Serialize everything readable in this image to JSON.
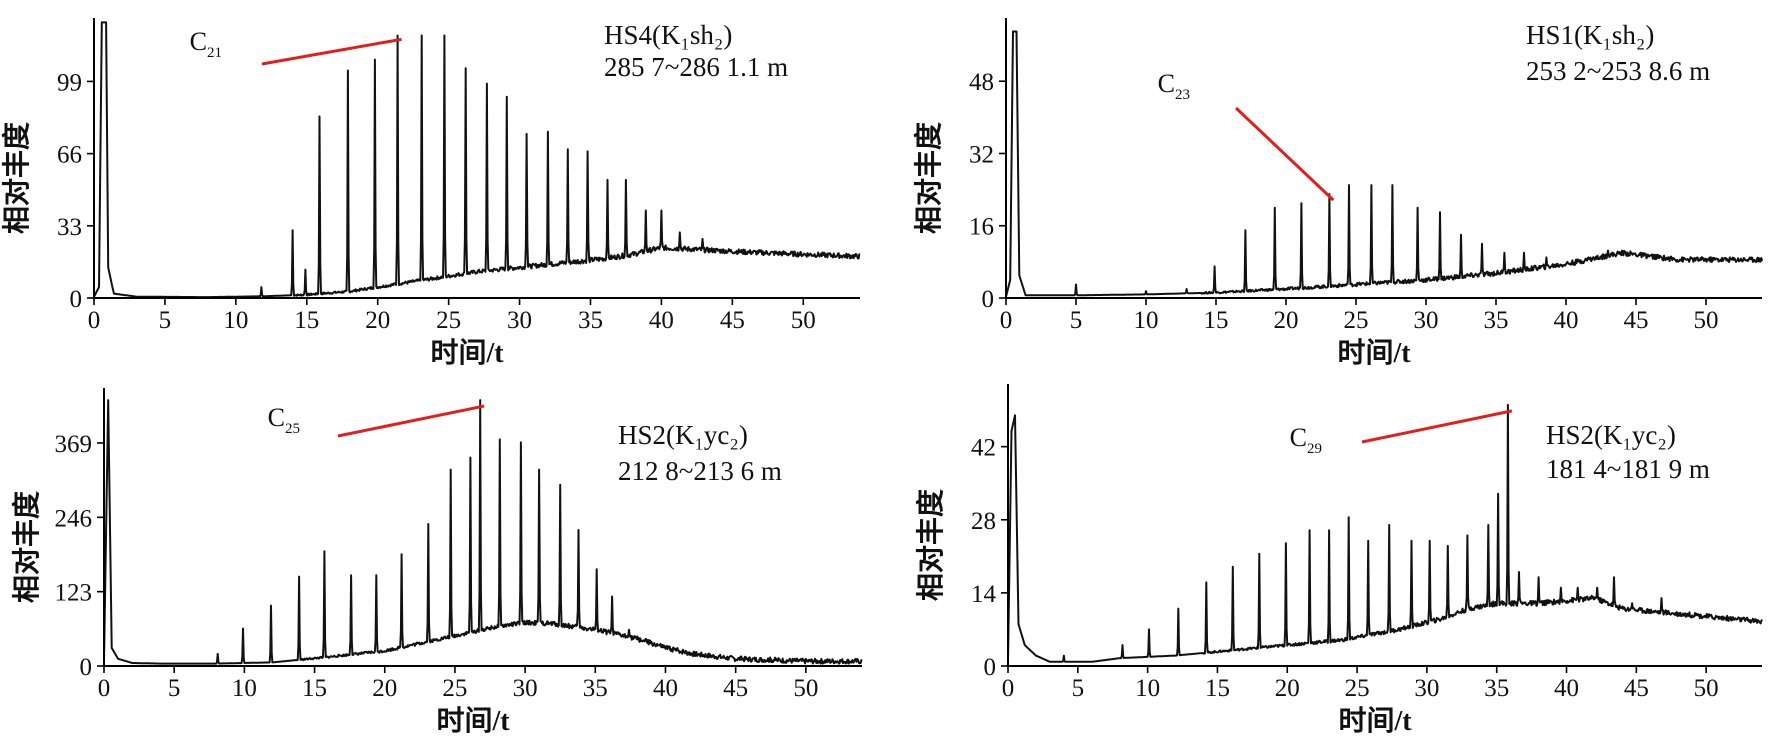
{
  "chart_data": [
    {
      "type": "line",
      "title": "",
      "xlabel": "时间/t",
      "ylabel": "相对丰度",
      "xlim": [
        0,
        54
      ],
      "ylim": [
        0,
        128
      ],
      "x_ticks": [
        0,
        5,
        10,
        15,
        20,
        25,
        30,
        35,
        40,
        45,
        50
      ],
      "y_ticks": [
        0,
        33,
        66,
        99
      ],
      "sample_lines": [
        "HS4(K₁sh₂)",
        "285 7~286 1.1 m"
      ],
      "peak_label": {
        "base": "C",
        "sub": "21",
        "x": 21.4,
        "y": 121
      },
      "baseline": [
        [
          0,
          0.5
        ],
        [
          0.35,
          5
        ],
        [
          0.55,
          126
        ],
        [
          0.85,
          126
        ],
        [
          1.0,
          14
        ],
        [
          1.4,
          2
        ],
        [
          3,
          0.6
        ],
        [
          8,
          0.4
        ],
        [
          12,
          0.8
        ],
        [
          15,
          1.5
        ],
        [
          18,
          3
        ],
        [
          21,
          6
        ],
        [
          24,
          9
        ],
        [
          27,
          12
        ],
        [
          30,
          14
        ],
        [
          33,
          16
        ],
        [
          36,
          18
        ],
        [
          38,
          20
        ],
        [
          40,
          23
        ],
        [
          43,
          22
        ],
        [
          46,
          21
        ],
        [
          50,
          20
        ],
        [
          54,
          19
        ]
      ],
      "peaks": [
        [
          11.8,
          5
        ],
        [
          14,
          31
        ],
        [
          14.9,
          13
        ],
        [
          15.9,
          83
        ],
        [
          17.9,
          104
        ],
        [
          19.8,
          109
        ],
        [
          21.4,
          120
        ],
        [
          23.1,
          120
        ],
        [
          24.7,
          120
        ],
        [
          26.2,
          105
        ],
        [
          27.7,
          98
        ],
        [
          29.1,
          92
        ],
        [
          30.5,
          75
        ],
        [
          32,
          76
        ],
        [
          33.4,
          68
        ],
        [
          34.8,
          67
        ],
        [
          36.2,
          54
        ],
        [
          37.5,
          54
        ],
        [
          38.9,
          40
        ],
        [
          40,
          40
        ],
        [
          41.3,
          30
        ],
        [
          42.9,
          27
        ]
      ],
      "series": [
        {
          "values": []
        }
      ]
    },
    {
      "type": "line",
      "title": "",
      "xlabel": "时间/t",
      "ylabel": "相对丰度",
      "xlim": [
        0,
        54
      ],
      "ylim": [
        0,
        62
      ],
      "x_ticks": [
        0,
        5,
        10,
        15,
        20,
        25,
        30,
        35,
        40,
        45,
        50
      ],
      "y_ticks": [
        0,
        16,
        32,
        48
      ],
      "sample_lines": [
        "HS1(K₁sh₂)",
        "253 2~253 8.6 m"
      ],
      "peak_label": {
        "base": "C",
        "sub": "23",
        "x": 23.1,
        "y": 23
      },
      "baseline": [
        [
          0,
          0.3
        ],
        [
          0.3,
          4
        ],
        [
          0.5,
          59
        ],
        [
          0.75,
          59
        ],
        [
          0.95,
          5
        ],
        [
          1.4,
          0.6
        ],
        [
          5,
          0.6
        ],
        [
          10,
          0.8
        ],
        [
          15,
          1.2
        ],
        [
          20,
          2
        ],
        [
          25,
          3
        ],
        [
          30,
          4
        ],
        [
          35,
          5.5
        ],
        [
          40,
          7.5
        ],
        [
          44,
          10
        ],
        [
          48,
          8.5
        ],
        [
          52,
          8.5
        ],
        [
          54,
          8.5
        ]
      ],
      "peaks": [
        [
          5,
          3
        ],
        [
          10,
          1.5
        ],
        [
          12.9,
          2
        ],
        [
          14.9,
          7
        ],
        [
          17.1,
          15
        ],
        [
          19.2,
          20
        ],
        [
          21.1,
          21
        ],
        [
          23.1,
          23
        ],
        [
          24.5,
          25
        ],
        [
          26.1,
          25
        ],
        [
          27.6,
          25
        ],
        [
          29.4,
          20
        ],
        [
          31,
          19
        ],
        [
          32.5,
          14
        ],
        [
          34,
          12
        ],
        [
          35.6,
          10
        ],
        [
          37,
          10
        ],
        [
          38.6,
          9
        ],
        [
          40.1,
          8
        ],
        [
          41.6,
          9
        ],
        [
          43,
          10.5
        ]
      ],
      "series": [
        {
          "values": []
        }
      ]
    },
    {
      "type": "line",
      "title": "",
      "xlabel": "时间/t",
      "ylabel": "相对丰度",
      "xlim": [
        0,
        54
      ],
      "ylim": [
        0,
        460
      ],
      "x_ticks": [
        0,
        5,
        10,
        15,
        20,
        25,
        30,
        35,
        40,
        45,
        50
      ],
      "y_ticks": [
        0,
        123,
        246,
        369
      ],
      "sample_lines": [
        "HS2(K₁yc₂)",
        "212 8~213 6 m"
      ],
      "peak_label": {
        "base": "C",
        "sub": "25",
        "x": 26.8,
        "y": 440
      },
      "baseline": [
        [
          0,
          8
        ],
        [
          0.3,
          440
        ],
        [
          0.55,
          30
        ],
        [
          1,
          12
        ],
        [
          2,
          5
        ],
        [
          4,
          4
        ],
        [
          8,
          4
        ],
        [
          12,
          6
        ],
        [
          16,
          15
        ],
        [
          20,
          25
        ],
        [
          24,
          45
        ],
        [
          28,
          65
        ],
        [
          30,
          72
        ],
        [
          32,
          70
        ],
        [
          35,
          60
        ],
        [
          38,
          45
        ],
        [
          40,
          30
        ],
        [
          42,
          20
        ],
        [
          45,
          12
        ],
        [
          50,
          8
        ],
        [
          54,
          8
        ]
      ],
      "peaks": [
        [
          8.1,
          20
        ],
        [
          9.9,
          62
        ],
        [
          11.9,
          100
        ],
        [
          13.9,
          148
        ],
        [
          15.7,
          190
        ],
        [
          17.6,
          150
        ],
        [
          19.4,
          150
        ],
        [
          21.2,
          185
        ],
        [
          23.1,
          235
        ],
        [
          24.7,
          325
        ],
        [
          26.1,
          345
        ],
        [
          26.8,
          440
        ],
        [
          28.2,
          375
        ],
        [
          29.7,
          370
        ],
        [
          31,
          325
        ],
        [
          32.5,
          300
        ],
        [
          33.8,
          225
        ],
        [
          35.1,
          160
        ],
        [
          36.2,
          115
        ],
        [
          37.4,
          60
        ],
        [
          38.6,
          45
        ]
      ],
      "series": [
        {
          "values": []
        }
      ]
    },
    {
      "type": "line",
      "title": "",
      "xlabel": "时间/t",
      "ylabel": "相对丰度",
      "xlim": [
        0,
        54
      ],
      "ylim": [
        0,
        54
      ],
      "x_ticks": [
        0,
        5,
        10,
        15,
        20,
        25,
        30,
        35,
        40,
        45,
        50
      ],
      "y_ticks": [
        0,
        14,
        28,
        42
      ],
      "sample_lines": [
        "HS2(K₁yc₂)",
        "181 4~181 9 m"
      ],
      "peak_label": {
        "base": "C",
        "sub": "29",
        "x": 35.8,
        "y": 50
      },
      "baseline": [
        [
          0,
          1
        ],
        [
          0.25,
          45
        ],
        [
          0.5,
          48
        ],
        [
          0.75,
          8
        ],
        [
          1.2,
          4
        ],
        [
          2,
          2
        ],
        [
          3,
          0.8
        ],
        [
          6,
          0.8
        ],
        [
          8,
          1.5
        ],
        [
          12,
          2
        ],
        [
          16,
          3
        ],
        [
          20,
          4
        ],
        [
          24,
          5
        ],
        [
          28,
          7
        ],
        [
          31,
          9
        ],
        [
          33,
          11
        ],
        [
          35,
          12
        ],
        [
          38,
          12
        ],
        [
          42,
          13
        ],
        [
          44,
          11
        ],
        [
          48,
          10
        ],
        [
          52,
          9
        ],
        [
          54,
          8.5
        ]
      ],
      "peaks": [
        [
          4,
          2
        ],
        [
          8.2,
          4
        ],
        [
          10.1,
          7
        ],
        [
          12.2,
          11
        ],
        [
          14.2,
          16
        ],
        [
          16.1,
          19
        ],
        [
          18,
          21.5
        ],
        [
          19.9,
          23.5
        ],
        [
          21.6,
          26
        ],
        [
          23,
          26
        ],
        [
          24.4,
          28.5
        ],
        [
          25.8,
          24
        ],
        [
          27.3,
          27
        ],
        [
          28.9,
          24
        ],
        [
          30.2,
          24
        ],
        [
          31.5,
          23
        ],
        [
          32.9,
          25
        ],
        [
          34.4,
          27
        ],
        [
          35.1,
          33
        ],
        [
          35.8,
          50
        ],
        [
          36.6,
          18
        ],
        [
          38,
          17
        ],
        [
          39.6,
          15
        ],
        [
          40.8,
          15
        ],
        [
          42.2,
          15
        ],
        [
          43.4,
          17
        ],
        [
          44.7,
          12
        ],
        [
          46.8,
          13
        ],
        [
          49.3,
          10
        ],
        [
          51.7,
          9
        ]
      ],
      "series": [
        {
          "values": []
        }
      ]
    }
  ]
}
